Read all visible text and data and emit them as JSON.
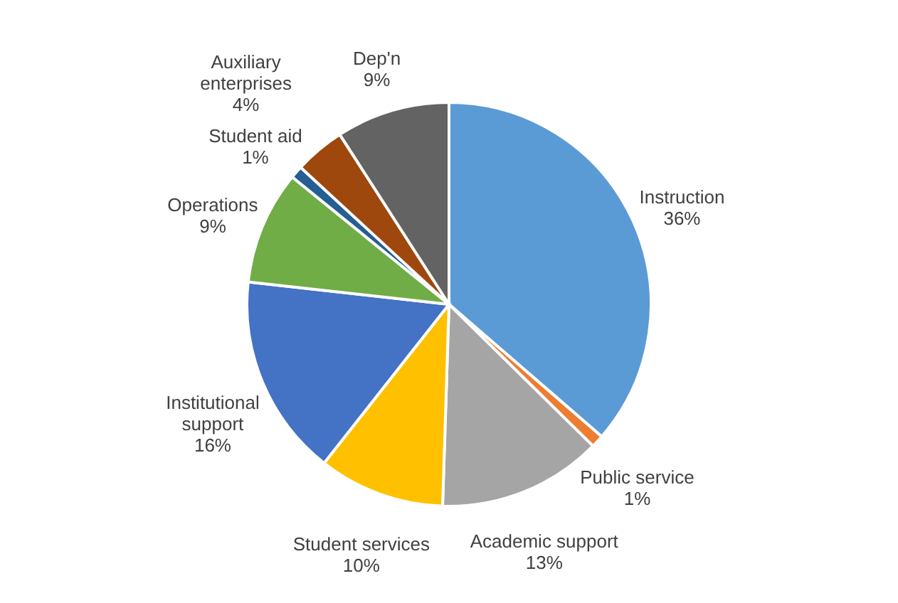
{
  "chart_data": {
    "type": "pie",
    "categories": [
      "Instruction",
      "Public service",
      "Academic support",
      "Student services",
      "Institutional support",
      "Operations",
      "Student aid",
      "Auxiliary enterprises",
      "Dep'n"
    ],
    "values": [
      36,
      1,
      13,
      10,
      16,
      9,
      1,
      4,
      9
    ],
    "value_labels": [
      "36%",
      "1%",
      "13%",
      "10%",
      "16%",
      "9%",
      "1%",
      "4%",
      "9%"
    ],
    "colors": [
      "#5b9bd5",
      "#ed7d31",
      "#a5a5a5",
      "#ffc000",
      "#4472c4",
      "#70ad47",
      "#255e91",
      "#9e480e",
      "#636363"
    ],
    "legend": false
  }
}
